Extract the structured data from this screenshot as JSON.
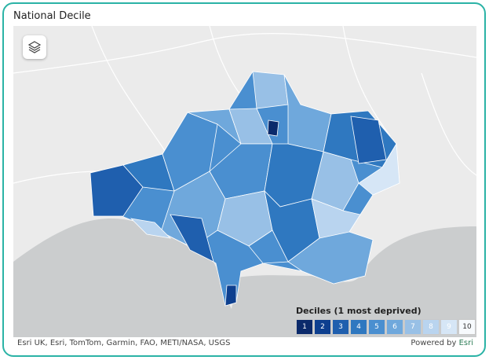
{
  "header": {
    "title": "National Decile"
  },
  "legend": {
    "title": "Deciles (1 most deprived)",
    "items": [
      {
        "label": "1",
        "color": "#0b2a6b",
        "text_color": "#ffffff"
      },
      {
        "label": "2",
        "color": "#0d3f8f",
        "text_color": "#ffffff"
      },
      {
        "label": "3",
        "color": "#1f5fae",
        "text_color": "#ffffff"
      },
      {
        "label": "4",
        "color": "#2f78c0",
        "text_color": "#ffffff"
      },
      {
        "label": "5",
        "color": "#4a8fd0",
        "text_color": "#ffffff"
      },
      {
        "label": "6",
        "color": "#6fa8dc",
        "text_color": "#ffffff"
      },
      {
        "label": "7",
        "color": "#98c0e6",
        "text_color": "#ffffff"
      },
      {
        "label": "8",
        "color": "#b9d4ef",
        "text_color": "#ffffff"
      },
      {
        "label": "9",
        "color": "#d6e6f6",
        "text_color": "#ffffff"
      },
      {
        "label": "10",
        "color": "#f7fafd",
        "text_color": "#333333"
      }
    ]
  },
  "attribution": {
    "sources": "Esri UK, Esri, TomTom, Garmin, FAO, METI/NASA, USGS",
    "powered_by": "Powered by",
    "provider": "Esri"
  }
}
